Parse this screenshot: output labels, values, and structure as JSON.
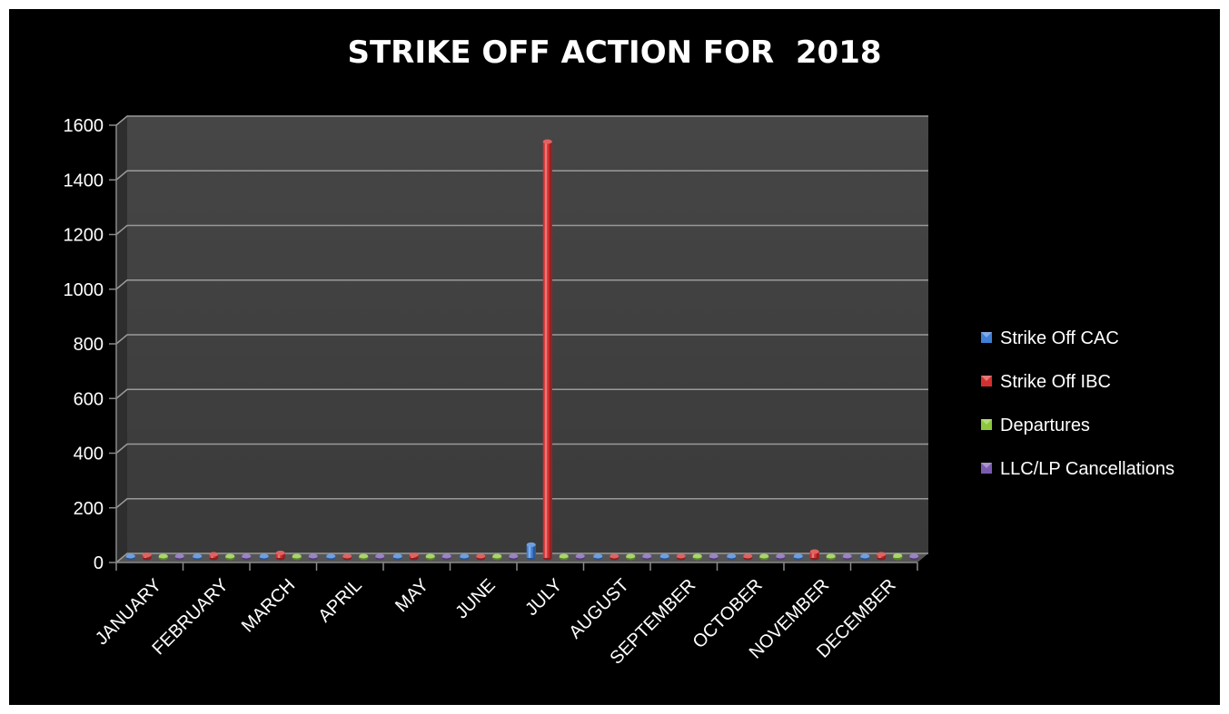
{
  "chart_data": {
    "type": "bar",
    "title": "STRIKE OFF ACTION FOR  2018",
    "xlabel": "",
    "ylabel": "",
    "categories": [
      "JANUARY",
      "FEBRUARY",
      "MARCH",
      "APRIL",
      "MAY",
      "JUNE",
      "JULY",
      "AUGUST",
      "SEPTEMBER",
      "OCTOBER",
      "NOVEMBER",
      "DECEMBER"
    ],
    "series": [
      {
        "name": "Strike Off CAC",
        "color": "#3f7fd6",
        "values": [
          0,
          0,
          0,
          0,
          0,
          0,
          55,
          0,
          0,
          0,
          0,
          0
        ]
      },
      {
        "name": "Strike Off IBC",
        "color": "#d42f2f",
        "values": [
          18,
          20,
          25,
          8,
          18,
          5,
          1530,
          10,
          5,
          12,
          30,
          20
        ]
      },
      {
        "name": "Departures",
        "color": "#8bc83a",
        "values": [
          12,
          10,
          8,
          5,
          6,
          5,
          5,
          5,
          3,
          5,
          8,
          15
        ]
      },
      {
        "name": "LLC/LP Cancellations",
        "color": "#7a5bb0",
        "values": [
          3,
          3,
          3,
          2,
          2,
          2,
          3,
          2,
          2,
          2,
          3,
          3
        ]
      }
    ],
    "ylim": [
      0,
      1600
    ],
    "yticks": [
      0,
      200,
      400,
      600,
      800,
      1000,
      1200,
      1400,
      1600
    ],
    "grid": true,
    "legend": "right"
  }
}
